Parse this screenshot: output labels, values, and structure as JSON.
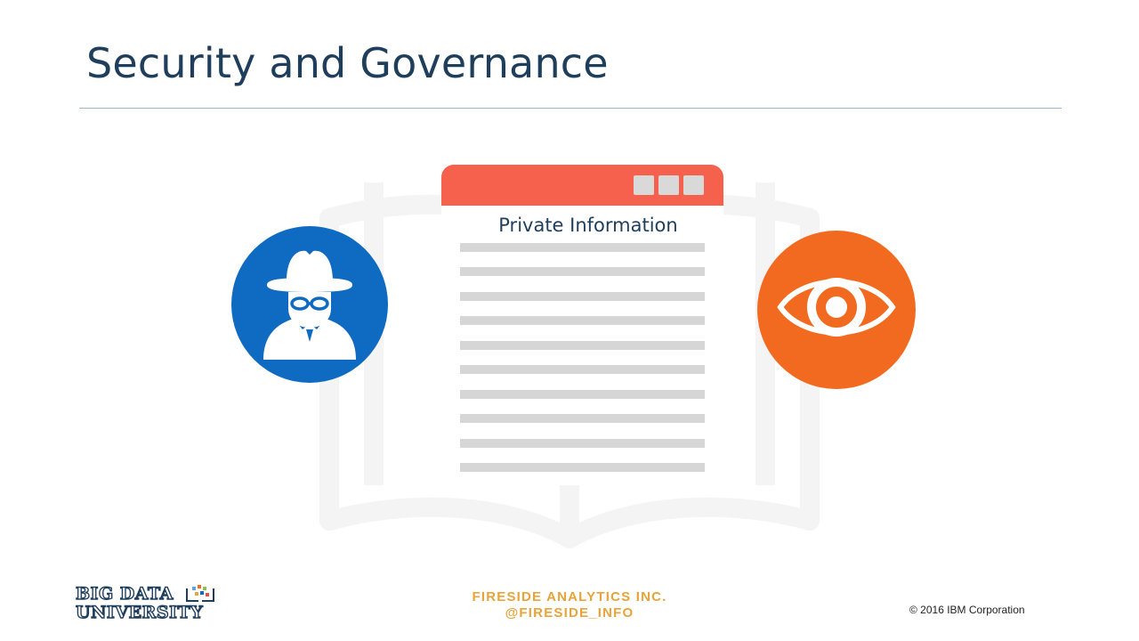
{
  "slide": {
    "title": "Security and Governance"
  },
  "document_window": {
    "heading": "Private Information",
    "text_line_count": 10,
    "titlebar_color": "#f6614d"
  },
  "icons": {
    "left": {
      "name": "spy-icon",
      "color": "#0f6bc1"
    },
    "right": {
      "name": "eye-icon",
      "color": "#f26a1f"
    }
  },
  "footer": {
    "logo_line1": "BIG DATA",
    "logo_line2": "UNIVERSITY",
    "company_line1": "FIRESIDE ANALYTICS INC.",
    "company_line2": "@FIRESIDE_INFO",
    "copyright": "© 2016 IBM Corporation"
  },
  "colors": {
    "title": "#1f3e5c",
    "accent_orange": "#f26a1f",
    "accent_blue": "#0f6bc1",
    "fireside_gold": "#e8a33a"
  }
}
